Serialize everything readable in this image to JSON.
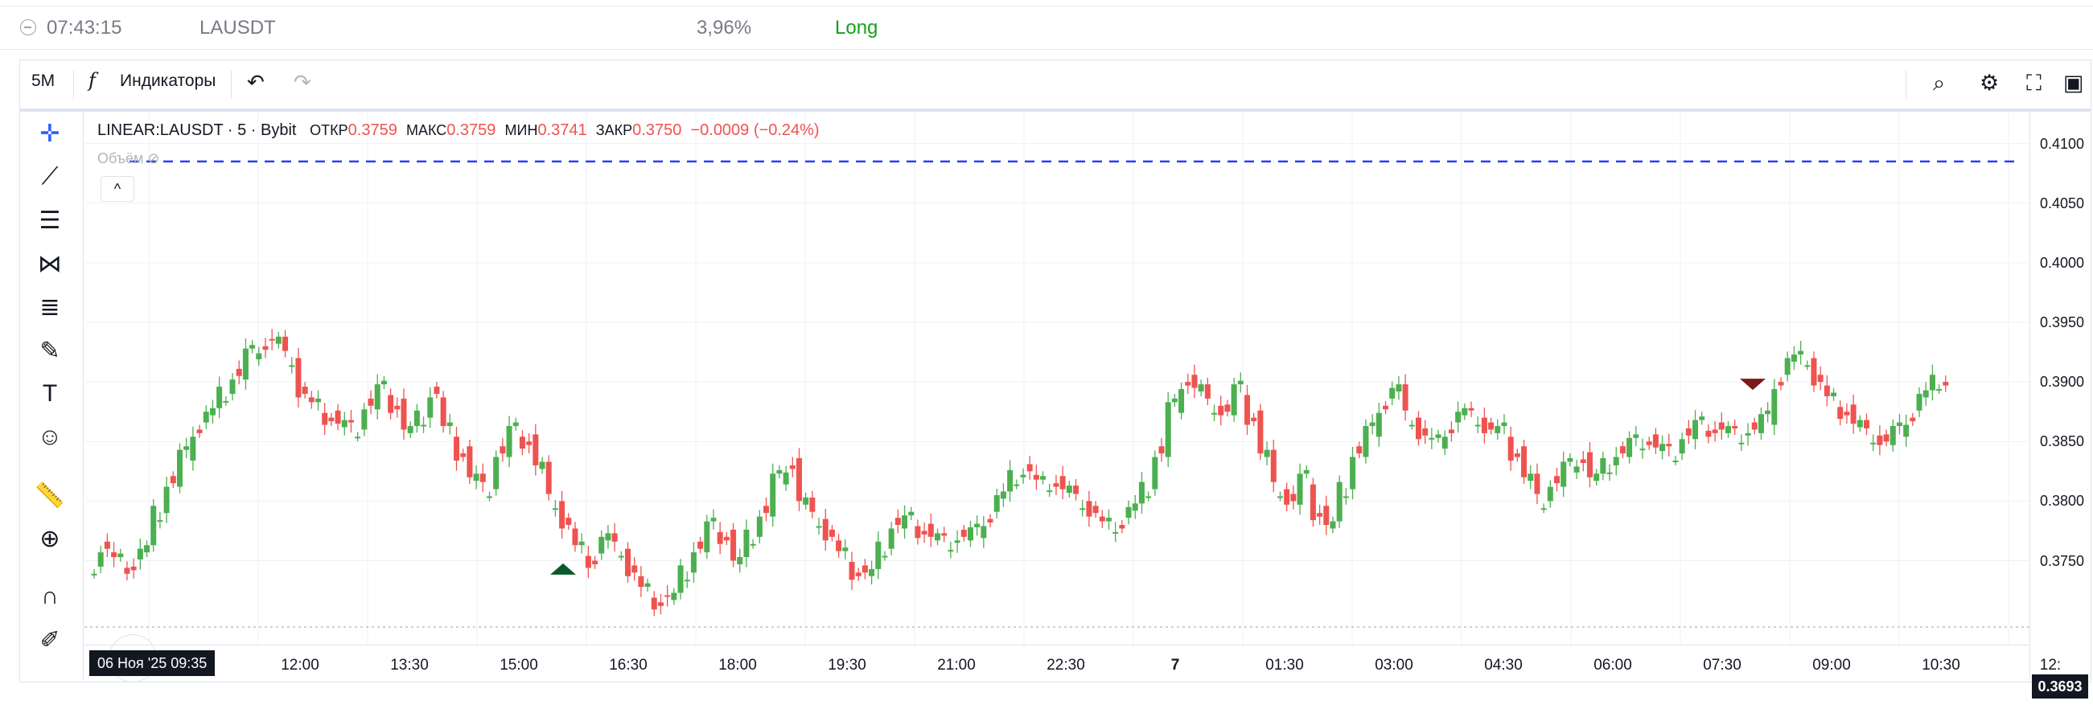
{
  "position_row": {
    "time": "07:43:15",
    "symbol": "LAUSDT",
    "percent": "3,96%",
    "side": "Long"
  },
  "toolbar": {
    "timeframe": "5M",
    "fx": "f",
    "indicators_label": "Индикаторы",
    "undo_icon": "undo-icon",
    "redo_icon": "redo-icon",
    "right_icons": [
      "search-chart-icon",
      "settings-icon",
      "fullscreen-icon",
      "camera-icon"
    ]
  },
  "left_tools": [
    "crosshair-icon",
    "trendline-icon",
    "horizontal-lines-icon",
    "pattern-icon",
    "fib-icon",
    "brush-icon",
    "text-icon",
    "emoji-icon",
    "ruler-icon",
    "zoom-in-icon",
    "magnet-icon",
    "lock-pencil-icon"
  ],
  "legend": {
    "symbol": "LINEAR:LAUSDT · 5 · Bybit",
    "open_label": "ОТКР",
    "open": "0.3759",
    "high_label": "МАКС",
    "high": "0.3759",
    "low_label": "МИН",
    "low": "0.3741",
    "close_label": "ЗАКР",
    "close": "0.3750",
    "change": "−0.0009 (−0.24%)"
  },
  "volume_label": "Объём",
  "collapse_symbol": "^",
  "tv_logo": "TV",
  "price_axis": {
    "ticks": [
      "0.4100",
      "0.4050",
      "0.4000",
      "0.3950",
      "0.3900",
      "0.3850",
      "0.3800",
      "0.3750"
    ],
    "current": "0.3693"
  },
  "time_axis": {
    "badge": "06 Ноя '25   09:35",
    "ticks": [
      "12:00",
      "13:30",
      "15:00",
      "16:30",
      "18:00",
      "19:30",
      "21:00",
      "22:30",
      "7",
      "01:30",
      "03:00",
      "04:30",
      "06:00",
      "07:30",
      "09:00",
      "10:30",
      "12:"
    ]
  },
  "colors": {
    "up": "#4caf50",
    "down": "#ef5350",
    "line": "#2b3ff0",
    "buy": "#0b5a2b",
    "sell": "#7a1a1a"
  },
  "chart_data": {
    "type": "candlestick",
    "ylim": [
      0.3693,
      0.412
    ],
    "dashed_level": 0.4085,
    "buy_marker_price": 0.3745,
    "sell_marker_price": 0.39,
    "close_series": [
      0.3745,
      0.376,
      0.375,
      0.3745,
      0.376,
      0.379,
      0.3815,
      0.384,
      0.386,
      0.3875,
      0.389,
      0.3905,
      0.3925,
      0.393,
      0.3935,
      0.392,
      0.389,
      0.388,
      0.387,
      0.3865,
      0.386,
      0.388,
      0.3895,
      0.388,
      0.386,
      0.387,
      0.389,
      0.386,
      0.384,
      0.382,
      0.381,
      0.384,
      0.386,
      0.385,
      0.383,
      0.38,
      0.378,
      0.376,
      0.375,
      0.377,
      0.376,
      0.374,
      0.3725,
      0.3715,
      0.372,
      0.374,
      0.376,
      0.378,
      0.377,
      0.375,
      0.377,
      0.379,
      0.382,
      0.383,
      0.38,
      0.3785,
      0.377,
      0.3755,
      0.374,
      0.374,
      0.376,
      0.378,
      0.3785,
      0.3775,
      0.377,
      0.3765,
      0.377,
      0.3775,
      0.3785,
      0.3805,
      0.382,
      0.3825,
      0.3815,
      0.3815,
      0.381,
      0.38,
      0.379,
      0.378,
      0.378,
      0.3795,
      0.381,
      0.384,
      0.388,
      0.39,
      0.3895,
      0.388,
      0.3875,
      0.3895,
      0.387,
      0.384,
      0.381,
      0.38,
      0.382,
      0.379,
      0.378,
      0.381,
      0.384,
      0.386,
      0.388,
      0.3895,
      0.387,
      0.3855,
      0.385,
      0.386,
      0.3875,
      0.387,
      0.386,
      0.386,
      0.384,
      0.382,
      0.38,
      0.3815,
      0.383,
      0.3835,
      0.382,
      0.383,
      0.384,
      0.385,
      0.385,
      0.3845,
      0.384,
      0.3855,
      0.3865,
      0.386,
      0.386,
      0.3855,
      0.386,
      0.387,
      0.39,
      0.392,
      0.392,
      0.39,
      0.3885,
      0.3875,
      0.3865,
      0.3855,
      0.385,
      0.386,
      0.387,
      0.389,
      0.39
    ]
  }
}
